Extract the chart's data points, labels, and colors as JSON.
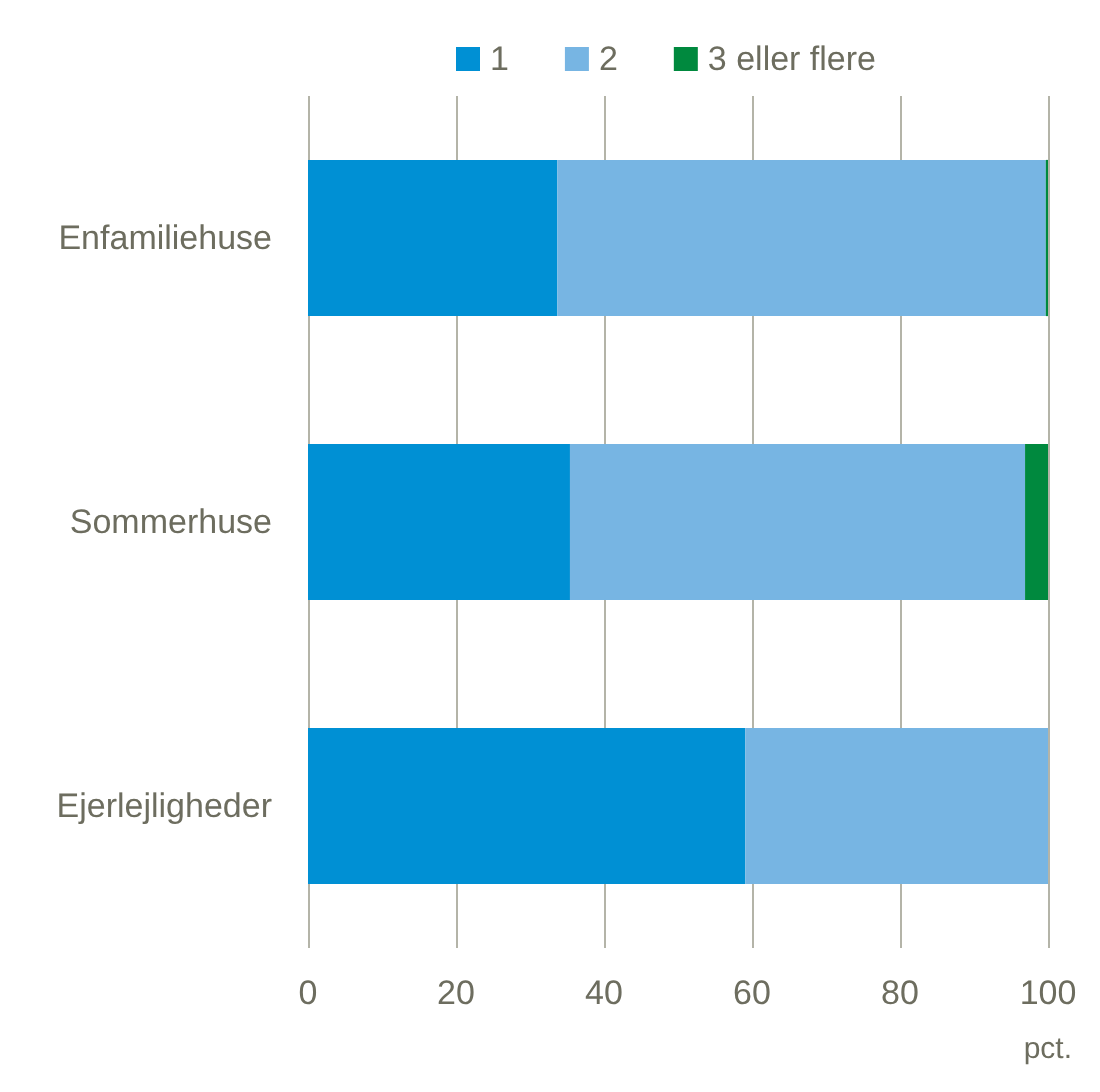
{
  "chart_data": {
    "type": "bar",
    "orientation": "horizontal",
    "stacked": true,
    "xlabel": "pct.",
    "categories": [
      "Enfamiliehuse",
      "Sommerhuse",
      "Ejerlejligheder"
    ],
    "series": [
      {
        "name": "1",
        "color": "#0090d4",
        "values": [
          33.7,
          35.4,
          59.1
        ]
      },
      {
        "name": "2",
        "color": "#77b5e3",
        "values": [
          66.0,
          61.5,
          40.9
        ]
      },
      {
        "name": "3 eller flere",
        "color": "#00893e",
        "values": [
          0.3,
          3.1,
          0
        ]
      }
    ],
    "xlim": [
      0,
      100
    ],
    "xticks": [
      0,
      20,
      40,
      60,
      80,
      100
    ],
    "grid": "x",
    "legend": "top"
  }
}
